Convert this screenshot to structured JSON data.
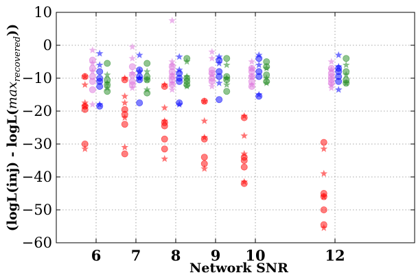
{
  "chart_data": {
    "type": "scatter",
    "title": "",
    "xlabel": "Network SNR",
    "ylabel_parts": {
      "prefix": "(logL(inj) - logL(",
      "italic": "max",
      "subscript": "recovered",
      "suffix": "))"
    },
    "xlim": [
      5,
      14
    ],
    "ylim": [
      -60,
      10
    ],
    "grid": true,
    "categories": [
      "6",
      "7",
      "8",
      "9",
      "10",
      "12"
    ],
    "category_positions": [
      6,
      7,
      8,
      9,
      10,
      12
    ],
    "yticks": [
      10,
      0,
      -10,
      -20,
      -30,
      -40,
      -50,
      -60
    ],
    "ytick_labels": [
      "10",
      "0",
      "−10",
      "−20",
      "−30",
      "−40",
      "−50",
      "−60"
    ],
    "series": [
      {
        "color": "#ff0000",
        "offset": -0.28,
        "markers": [
          {
            "x": "6",
            "star": [
              -9.5,
              -12,
              -17.5,
              -18.5,
              -31.5
            ],
            "circle": [
              -9.5,
              -18.5,
              -19.5,
              -30
            ]
          },
          {
            "x": "7",
            "star": [
              -10,
              -15.5,
              -17.5,
              -22,
              -31
            ],
            "circle": [
              -10.5,
              -19.5,
              -21,
              -24,
              -33
            ]
          },
          {
            "x": "8",
            "star": [
              -12,
              -19,
              -23,
              -34.5
            ],
            "circle": [
              -12.5,
              -23.5,
              -24.5,
              -28.5,
              -31.5
            ]
          },
          {
            "x": "9",
            "star": [
              -17,
              -23,
              -28,
              -37.5
            ],
            "circle": [
              -17,
              -28.5,
              -34,
              -36
            ]
          },
          {
            "x": "10",
            "star": [
              -21.5,
              -27.5,
              -33,
              -41.5
            ],
            "circle": [
              -22,
              -34,
              -35,
              -37,
              -42
            ]
          },
          {
            "x": "12",
            "star": [
              -31.5,
              -39,
              -46,
              -55.5
            ],
            "circle": [
              -29.5,
              -45,
              -46,
              -50,
              -54.5
            ]
          }
        ]
      },
      {
        "color": "#dd77dd",
        "offset": -0.09,
        "markers": [
          {
            "x": "6",
            "star": [
              -1.5,
              -5.5,
              -8,
              -18
            ],
            "circle": [
              -4.5,
              -7,
              -9.5,
              -11,
              -13.5
            ]
          },
          {
            "x": "7",
            "star": [
              -0.5,
              -4,
              -8.5,
              -13
            ],
            "circle": [
              -6.5,
              -9,
              -11,
              -12
            ]
          },
          {
            "x": "8",
            "star": [
              7.5,
              -5,
              -6,
              -9,
              -11.5,
              -13.5
            ],
            "circle": [
              -6.5,
              -8,
              -9.5,
              -10.5,
              -12
            ]
          },
          {
            "x": "9",
            "star": [
              -2,
              -4,
              -9,
              -12.5
            ],
            "circle": [
              -7.5,
              -8.5,
              -10,
              -11
            ]
          },
          {
            "x": "10",
            "star": [
              -5,
              -7,
              -9.5,
              -12
            ],
            "circle": [
              -7,
              -8,
              -9.5,
              -11,
              -12.5
            ]
          },
          {
            "x": "12",
            "star": [
              -5,
              -7.5,
              -12,
              -13
            ],
            "circle": [
              -7,
              -8.5,
              -9.5,
              -10.5,
              -11.5
            ]
          }
        ]
      },
      {
        "color": "#0000ff",
        "offset": 0.09,
        "markers": [
          {
            "x": "6",
            "star": [
              -2.5,
              -6,
              -18
            ],
            "circle": [
              -8,
              -10,
              -11,
              -12.5,
              -18.5
            ]
          },
          {
            "x": "7",
            "star": [
              -3,
              -8,
              -10
            ],
            "circle": [
              -7.5,
              -9.5,
              -10.5,
              -17.5
            ]
          },
          {
            "x": "8",
            "star": [
              -3.5,
              -7.5,
              -18
            ],
            "circle": [
              -8.5,
              -10,
              -11,
              -17.5
            ]
          },
          {
            "x": "9",
            "star": [
              -3.5,
              -5.5,
              -11.5
            ],
            "circle": [
              -4.5,
              -8,
              -9.5,
              -16.5
            ]
          },
          {
            "x": "10",
            "star": [
              -3,
              -6,
              -15
            ],
            "circle": [
              -4,
              -8,
              -9.5,
              -15.5
            ]
          },
          {
            "x": "12",
            "star": [
              -3,
              -6.5,
              -13.5
            ],
            "circle": [
              -7,
              -8,
              -9.5,
              -11
            ]
          }
        ]
      },
      {
        "color": "#228b22",
        "offset": 0.28,
        "markers": [
          {
            "x": "6",
            "star": [
              -9,
              -11.5,
              -13
            ],
            "circle": [
              -5.5,
              -10.5,
              -12,
              -14
            ]
          },
          {
            "x": "7",
            "star": [
              -8,
              -10.5,
              -13.5
            ],
            "circle": [
              -5.5,
              -9.5,
              -10.5,
              -14.5
            ]
          },
          {
            "x": "8",
            "star": [
              -5,
              -9.5,
              -12.5
            ],
            "circle": [
              -4,
              -10,
              -11,
              -12
            ]
          },
          {
            "x": "9",
            "star": [
              -6,
              -10,
              -12
            ],
            "circle": [
              -4,
              -9.5,
              -10.5,
              -14
            ]
          },
          {
            "x": "10",
            "star": [
              -7,
              -10,
              -11.5
            ],
            "circle": [
              -5,
              -6.5,
              -9,
              -11
            ]
          },
          {
            "x": "12",
            "star": [
              -6,
              -9,
              -11.5
            ],
            "circle": [
              -4,
              -8,
              -10.5,
              -11.5
            ]
          }
        ]
      }
    ]
  }
}
